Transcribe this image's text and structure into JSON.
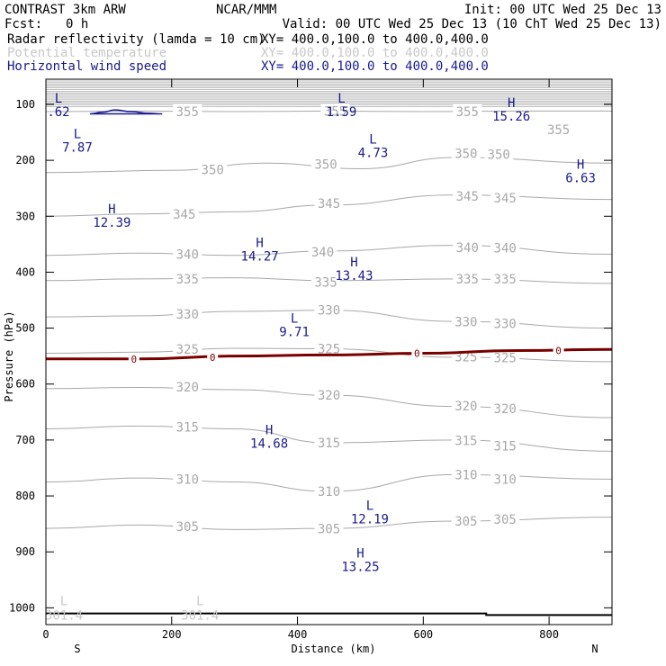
{
  "header": {
    "model": "CONTRAST  3km ARW",
    "center": "NCAR/MMM",
    "init": "Init: 00 UTC Wed 25 Dec 13",
    "fcst_label": "Fcst:",
    "fcst_value": "0 h",
    "valid": "Valid: 00 UTC Wed 25 Dec 13 (10 ChT Wed 25 Dec 13)"
  },
  "colors": {
    "theta": "#a8a8a8",
    "wind": "#1a1a8c",
    "zero_line": "#7a0000",
    "text": "#000000"
  },
  "chart_data": {
    "type": "cross-section",
    "legend": [
      {
        "label": "Radar reflectivity (lamda = 10 cm)",
        "xy": "XY= 400.0,100.0 to 400.0,400.0",
        "color": "#000000"
      },
      {
        "label": "Potential temperature",
        "xy": "XY= 400.0,100.0 to 400.0,400.0",
        "color": "#c8c8c8"
      },
      {
        "label": "Horizontal wind speed",
        "xy": "XY= 400.0,100.0 to 400.0,400.0",
        "color": "#1a1a8c"
      }
    ],
    "xlabel": "Distance (km)",
    "ylabel": "Pressure (hPa)",
    "xlim": [
      0,
      900
    ],
    "ylim": [
      1030,
      55
    ],
    "xticks": [
      0,
      200,
      400,
      600,
      800
    ],
    "yticks": [
      100,
      200,
      300,
      400,
      500,
      600,
      700,
      800,
      900,
      1000
    ],
    "direction_labels": {
      "left": "S",
      "right": "N"
    },
    "theta_contours": [
      {
        "level": 355,
        "points": [
          [
            0,
            113
          ],
          [
            150,
            112
          ],
          [
            300,
            113
          ],
          [
            450,
            112
          ],
          [
            600,
            113
          ],
          [
            750,
            112
          ],
          [
            900,
            112
          ]
        ],
        "labels": [
          [
            225,
            113
          ],
          [
            460,
            112
          ],
          [
            670,
            113
          ],
          [
            815,
            145
          ]
        ]
      },
      {
        "level": 350,
        "points": [
          [
            0,
            222
          ],
          [
            200,
            218
          ],
          [
            350,
            205
          ],
          [
            500,
            215
          ],
          [
            650,
            195
          ],
          [
            900,
            205
          ]
        ],
        "labels": [
          [
            265,
            217
          ],
          [
            445,
            207
          ],
          [
            668,
            188
          ],
          [
            720,
            189
          ]
        ]
      },
      {
        "level": 345,
        "points": [
          [
            0,
            300
          ],
          [
            150,
            296
          ],
          [
            300,
            292
          ],
          [
            450,
            280
          ],
          [
            650,
            262
          ],
          [
            900,
            270
          ]
        ],
        "labels": [
          [
            220,
            296
          ],
          [
            450,
            277
          ],
          [
            670,
            264
          ],
          [
            730,
            267
          ]
        ]
      },
      {
        "level": 340,
        "points": [
          [
            0,
            370
          ],
          [
            150,
            366
          ],
          [
            300,
            370
          ],
          [
            450,
            362
          ],
          [
            650,
            352
          ],
          [
            900,
            368
          ]
        ],
        "labels": [
          [
            225,
            368
          ],
          [
            440,
            364
          ],
          [
            670,
            356
          ],
          [
            730,
            357
          ]
        ]
      },
      {
        "level": 335,
        "points": [
          [
            0,
            415
          ],
          [
            150,
            412
          ],
          [
            300,
            410
          ],
          [
            450,
            415
          ],
          [
            650,
            412
          ],
          [
            900,
            420
          ]
        ],
        "labels": [
          [
            225,
            412
          ],
          [
            445,
            418
          ],
          [
            670,
            412
          ],
          [
            730,
            412
          ]
        ]
      },
      {
        "level": 330,
        "points": [
          [
            0,
            480
          ],
          [
            150,
            478
          ],
          [
            300,
            470
          ],
          [
            450,
            468
          ],
          [
            650,
            488
          ],
          [
            900,
            500
          ]
        ],
        "labels": [
          [
            225,
            475
          ],
          [
            450,
            468
          ],
          [
            668,
            489
          ],
          [
            730,
            492
          ]
        ]
      },
      {
        "level": 325,
        "points": [
          [
            0,
            545
          ],
          [
            150,
            543
          ],
          [
            300,
            536
          ],
          [
            450,
            537
          ],
          [
            650,
            552
          ],
          [
            900,
            560
          ]
        ],
        "labels": [
          [
            225,
            538
          ],
          [
            450,
            537
          ],
          [
            668,
            551
          ],
          [
            730,
            553
          ]
        ]
      },
      {
        "level": 320,
        "points": [
          [
            0,
            608
          ],
          [
            150,
            606
          ],
          [
            300,
            610
          ],
          [
            450,
            620
          ],
          [
            650,
            640
          ],
          [
            900,
            660
          ]
        ],
        "labels": [
          [
            225,
            605
          ],
          [
            450,
            620
          ],
          [
            668,
            639
          ],
          [
            730,
            644
          ]
        ]
      },
      {
        "level": 315,
        "points": [
          [
            0,
            680
          ],
          [
            150,
            675
          ],
          [
            300,
            680
          ],
          [
            450,
            705
          ],
          [
            650,
            700
          ],
          [
            900,
            720
          ]
        ],
        "labels": [
          [
            225,
            677
          ],
          [
            450,
            705
          ],
          [
            668,
            701
          ],
          [
            730,
            711
          ]
        ]
      },
      {
        "level": 310,
        "points": [
          [
            0,
            775
          ],
          [
            150,
            768
          ],
          [
            300,
            775
          ],
          [
            450,
            792
          ],
          [
            650,
            762
          ],
          [
            900,
            770
          ]
        ],
        "labels": [
          [
            225,
            770
          ],
          [
            450,
            792
          ],
          [
            668,
            762
          ],
          [
            730,
            770
          ]
        ]
      },
      {
        "level": 305,
        "points": [
          [
            0,
            858
          ],
          [
            150,
            852
          ],
          [
            300,
            860
          ],
          [
            450,
            858
          ],
          [
            650,
            845
          ],
          [
            900,
            838
          ]
        ],
        "labels": [
          [
            225,
            855
          ],
          [
            450,
            859
          ],
          [
            668,
            845
          ],
          [
            730,
            842
          ]
        ]
      }
    ],
    "freezing_line": {
      "level": 0,
      "points": [
        [
          0,
          555
        ],
        [
          150,
          555
        ],
        [
          300,
          550
        ],
        [
          450,
          548
        ],
        [
          600,
          545
        ],
        [
          750,
          540
        ],
        [
          900,
          538
        ]
      ],
      "labels": [
        [
          140,
          555
        ],
        [
          265,
          552
        ],
        [
          590,
          545
        ],
        [
          815,
          540
        ]
      ]
    },
    "surface_line": {
      "points": [
        [
          0,
          1010
        ],
        [
          700,
          1010
        ],
        [
          700,
          1013
        ],
        [
          900,
          1013
        ]
      ]
    },
    "wind_contour": {
      "points": [
        [
          70,
          117
        ],
        [
          90,
          114
        ],
        [
          110,
          110
        ],
        [
          135,
          113
        ],
        [
          165,
          116
        ],
        [
          185,
          117
        ]
      ]
    },
    "wind_extrema": [
      {
        "kind": "L",
        "value": ".62",
        "x": 20,
        "p": 97
      },
      {
        "kind": "L",
        "value": "1.59",
        "x": 470,
        "p": 97
      },
      {
        "kind": "H",
        "value": "15.26",
        "x": 740,
        "p": 105
      },
      {
        "kind": "L",
        "value": "7.87",
        "x": 50,
        "p": 160
      },
      {
        "kind": "L",
        "value": "4.73",
        "x": 520,
        "p": 170
      },
      {
        "kind": "H",
        "value": "6.63",
        "x": 850,
        "p": 215
      },
      {
        "kind": "H",
        "value": "12.39",
        "x": 105,
        "p": 295
      },
      {
        "kind": "H",
        "value": "14.27",
        "x": 340,
        "p": 355
      },
      {
        "kind": "H",
        "value": "13.43",
        "x": 490,
        "p": 390
      },
      {
        "kind": "L",
        "value": "9.71",
        "x": 395,
        "p": 490
      },
      {
        "kind": "H",
        "value": "14.68",
        "x": 355,
        "p": 690
      },
      {
        "kind": "L",
        "value": "12.19",
        "x": 515,
        "p": 825
      },
      {
        "kind": "H",
        "value": "13.25",
        "x": 500,
        "p": 910
      }
    ],
    "theta_extrema": [
      {
        "kind": "L",
        "value": "301.4",
        "x": 0,
        "p": 1005
      },
      {
        "kind": "L",
        "value": "301.4",
        "x": 245,
        "p": 1005
      }
    ]
  }
}
